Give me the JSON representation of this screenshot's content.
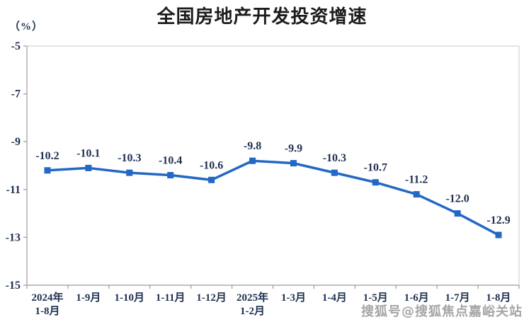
{
  "page": {
    "title": "全国房地产开发投资增速",
    "unit_label": "（%）",
    "watermark": "搜狐号@搜狐焦点嘉峪关站"
  },
  "chart_data": {
    "type": "line",
    "title": "全国房地产开发投资增速",
    "unit": "（%）",
    "categories": [
      [
        "2024年",
        "1-8月"
      ],
      [
        "1-9月"
      ],
      [
        "1-10月"
      ],
      [
        "1-11月"
      ],
      [
        "1-12月"
      ],
      [
        "2025年",
        "1-2月"
      ],
      [
        "1-3月"
      ],
      [
        "1-4月"
      ],
      [
        "1-5月"
      ],
      [
        "1-6月"
      ],
      [
        "1-7月"
      ],
      [
        "1-8月"
      ]
    ],
    "values": [
      -10.2,
      -10.1,
      -10.3,
      -10.4,
      -10.6,
      -9.8,
      -9.9,
      -10.3,
      -10.7,
      -11.2,
      -12.0,
      -12.9
    ],
    "xlabel": "",
    "ylabel": "（%）",
    "ylim": [
      -15,
      -5
    ],
    "yticks": [
      -5,
      -7,
      -9,
      -11,
      -13,
      -15
    ],
    "grid": false,
    "legend": "none",
    "marker": "square",
    "colors": {
      "line": "#2268c4",
      "marker": "#2268c4",
      "data_label": "#1f3050",
      "axis_label": "#1f3050",
      "axis": "#9a9a9a",
      "plot_border": "#c9c9c9",
      "title": "#1c1c1c",
      "watermark": "#8f8f8f"
    }
  }
}
